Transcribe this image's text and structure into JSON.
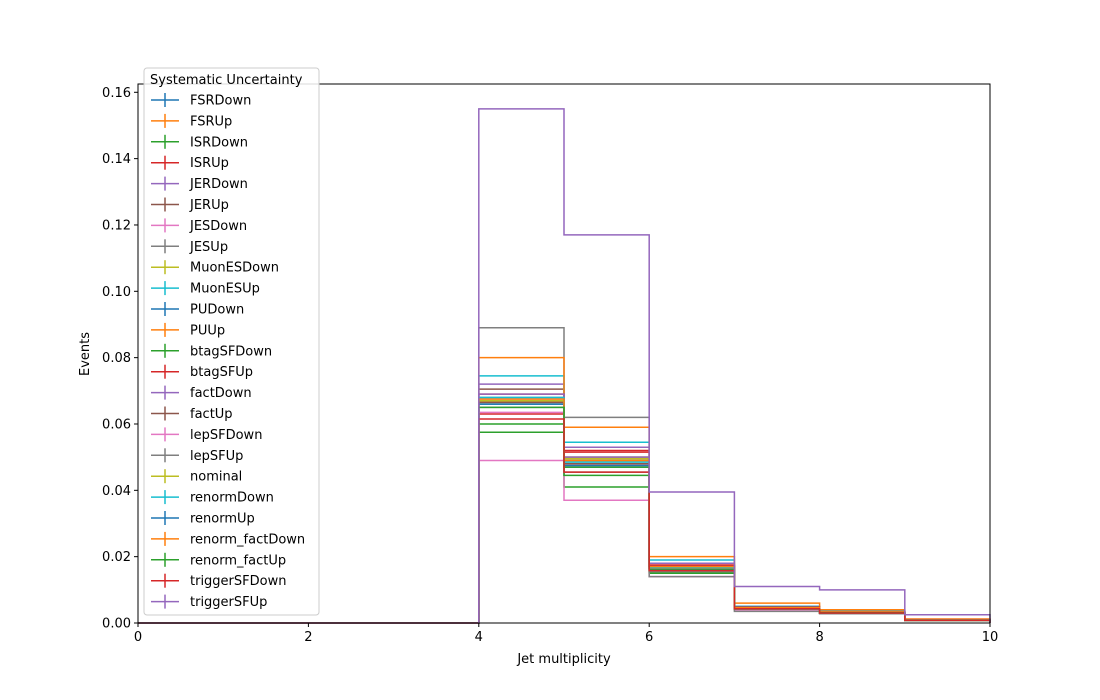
{
  "chart_data": {
    "type": "line",
    "xlabel": "Jet multiplicity",
    "ylabel": "Events",
    "xlim": [
      0,
      10
    ],
    "ylim": [
      0,
      0.1625
    ],
    "grid": false,
    "legend_title": "Systematic Uncertainty",
    "legend_position": "top-left",
    "x_ticks": [
      0,
      2,
      4,
      6,
      8,
      10
    ],
    "y_ticks": [
      0.0,
      0.02,
      0.04,
      0.06,
      0.08,
      0.1,
      0.12,
      0.14,
      0.16
    ],
    "y_tick_labels": [
      "0.00",
      "0.02",
      "0.04",
      "0.06",
      "0.08",
      "0.10",
      "0.12",
      "0.14",
      "0.16"
    ],
    "bin_edges": [
      0,
      1,
      2,
      3,
      4,
      5,
      6,
      7,
      8,
      9,
      10
    ],
    "series": [
      {
        "name": "FSRDown",
        "color": "#1f77b4",
        "values": [
          0,
          0,
          0,
          0,
          0.068,
          0.047,
          0.017,
          0.0045,
          0.003,
          0.0008
        ]
      },
      {
        "name": "FSRUp",
        "color": "#ff7f0e",
        "values": [
          0,
          0,
          0,
          0,
          0.0665,
          0.048,
          0.016,
          0.005,
          0.0035,
          0.001
        ]
      },
      {
        "name": "ISRDown",
        "color": "#2ca02c",
        "values": [
          0,
          0,
          0,
          0,
          0.0575,
          0.041,
          0.015,
          0.004,
          0.003,
          0.0008
        ]
      },
      {
        "name": "ISRUp",
        "color": "#d62728",
        "values": [
          0,
          0,
          0,
          0,
          0.063,
          0.052,
          0.0175,
          0.005,
          0.0035,
          0.001
        ]
      },
      {
        "name": "JERDown",
        "color": "#9467bd",
        "values": [
          0,
          0,
          0,
          0,
          0.072,
          0.053,
          0.018,
          0.005,
          0.0035,
          0.001
        ]
      },
      {
        "name": "JERUp",
        "color": "#8c564b",
        "values": [
          0,
          0,
          0,
          0,
          0.0705,
          0.05,
          0.017,
          0.0045,
          0.003,
          0.001
        ]
      },
      {
        "name": "JESDown",
        "color": "#e377c2",
        "values": [
          0,
          0,
          0,
          0,
          0.049,
          0.037,
          0.014,
          0.004,
          0.003,
          0.0008
        ]
      },
      {
        "name": "JESUp",
        "color": "#7f7f7f",
        "values": [
          0,
          0,
          0,
          0,
          0.089,
          0.062,
          0.014,
          0.0035,
          0.0028,
          0.0008
        ]
      },
      {
        "name": "MuonESDown",
        "color": "#bcbd22",
        "values": [
          0,
          0,
          0,
          0,
          0.067,
          0.05,
          0.0165,
          0.0045,
          0.0032,
          0.0009
        ]
      },
      {
        "name": "MuonESUp",
        "color": "#17becf",
        "values": [
          0,
          0,
          0,
          0,
          0.0745,
          0.0545,
          0.019,
          0.005,
          0.0035,
          0.001
        ]
      },
      {
        "name": "PUDown",
        "color": "#1f77b4",
        "values": [
          0,
          0,
          0,
          0,
          0.066,
          0.049,
          0.0165,
          0.0045,
          0.0032,
          0.0009
        ]
      },
      {
        "name": "PUUp",
        "color": "#ff7f0e",
        "values": [
          0,
          0,
          0,
          0,
          0.08,
          0.059,
          0.02,
          0.006,
          0.004,
          0.0012
        ]
      },
      {
        "name": "btagSFDown",
        "color": "#2ca02c",
        "values": [
          0,
          0,
          0,
          0,
          0.06,
          0.0445,
          0.0155,
          0.0042,
          0.003,
          0.0008
        ]
      },
      {
        "name": "btagSFUp",
        "color": "#d62728",
        "values": [
          0,
          0,
          0,
          0,
          0.069,
          0.0515,
          0.0172,
          0.0048,
          0.0034,
          0.001
        ]
      },
      {
        "name": "factDown",
        "color": "#9467bd",
        "values": [
          0,
          0,
          0,
          0,
          0.069,
          0.05,
          0.017,
          0.0045,
          0.0032,
          0.0009
        ]
      },
      {
        "name": "factUp",
        "color": "#8c564b",
        "values": [
          0,
          0,
          0,
          0,
          0.0665,
          0.048,
          0.0165,
          0.0045,
          0.0032,
          0.0009
        ]
      },
      {
        "name": "lepSFDown",
        "color": "#e377c2",
        "values": [
          0,
          0,
          0,
          0,
          0.0635,
          0.0475,
          0.016,
          0.0043,
          0.0031,
          0.0009
        ]
      },
      {
        "name": "lepSFUp",
        "color": "#7f7f7f",
        "values": [
          0,
          0,
          0,
          0,
          0.065,
          0.0455,
          0.0155,
          0.0042,
          0.003,
          0.0008
        ]
      },
      {
        "name": "nominal",
        "color": "#bcbd22",
        "values": [
          0,
          0,
          0,
          0,
          0.067,
          0.0495,
          0.0165,
          0.0045,
          0.0032,
          0.0009
        ]
      },
      {
        "name": "renormDown",
        "color": "#17becf",
        "values": [
          0,
          0,
          0,
          0,
          0.068,
          0.0485,
          0.0168,
          0.0046,
          0.0033,
          0.0009
        ]
      },
      {
        "name": "renormUp",
        "color": "#1f77b4",
        "values": [
          0,
          0,
          0,
          0,
          0.066,
          0.0475,
          0.0162,
          0.0044,
          0.0031,
          0.0009
        ]
      },
      {
        "name": "renorm_factDown",
        "color": "#ff7f0e",
        "values": [
          0,
          0,
          0,
          0,
          0.0675,
          0.049,
          0.017,
          0.0046,
          0.0033,
          0.0009
        ]
      },
      {
        "name": "renorm_factUp",
        "color": "#2ca02c",
        "values": [
          0,
          0,
          0,
          0,
          0.065,
          0.047,
          0.016,
          0.0043,
          0.0031,
          0.0008
        ]
      },
      {
        "name": "triggerSFDown",
        "color": "#d62728",
        "values": [
          0,
          0,
          0,
          0,
          0.0615,
          0.0455,
          0.0158,
          0.0043,
          0.003,
          0.0008
        ]
      },
      {
        "name": "triggerSFUp",
        "color": "#9467bd",
        "values": [
          0,
          0,
          0,
          0,
          0.155,
          0.117,
          0.0395,
          0.011,
          0.01,
          0.0025
        ]
      }
    ]
  }
}
